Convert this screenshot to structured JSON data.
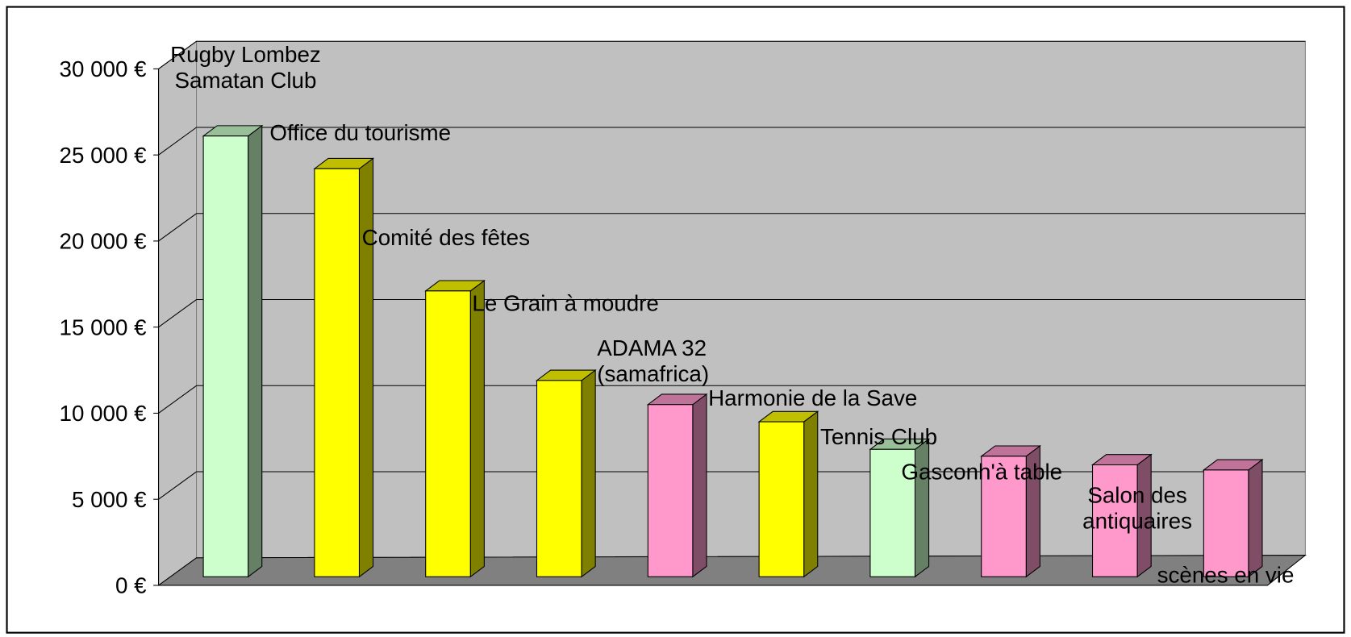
{
  "chart_data": {
    "type": "bar3d",
    "categories": [
      [
        "Rugby Lombez",
        "Samatan Club"
      ],
      [
        "Office du tourisme"
      ],
      [
        "Comité des fêtes"
      ],
      [
        "Le Grain à moudre"
      ],
      [
        "ADAMA 32",
        "(samafrica)"
      ],
      [
        "Harmonie de la Save"
      ],
      [
        "Tennis Club"
      ],
      [
        "Gasconh'à table"
      ],
      [
        "Salon des",
        "antiquaires"
      ],
      [
        "scènes en vie"
      ]
    ],
    "values": [
      25600,
      23700,
      16600,
      11400,
      10000,
      9000,
      7400,
      7000,
      6500,
      6200
    ],
    "colors": [
      "#ccffcc",
      "#ffff00",
      "#ffff00",
      "#ffff00",
      "#ff99cc",
      "#ffff00",
      "#ccffcc",
      "#ff99cc",
      "#ff99cc",
      "#ff99cc"
    ],
    "ylim": [
      0,
      30000
    ],
    "yticks": [
      {
        "value": 0,
        "label": "0 €"
      },
      {
        "value": 5000,
        "label": "5 000 €"
      },
      {
        "value": 10000,
        "label": "10 000 €"
      },
      {
        "value": 15000,
        "label": "15 000 €"
      },
      {
        "value": 20000,
        "label": "20 000 €"
      },
      {
        "value": 25000,
        "label": "25 000 €"
      },
      {
        "value": 30000,
        "label": "30 000 €"
      }
    ],
    "grid": true
  }
}
